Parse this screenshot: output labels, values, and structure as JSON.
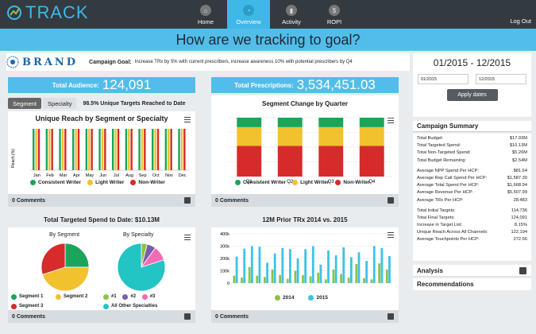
{
  "app": {
    "logo_text": "TRACK",
    "logout": "Log Out"
  },
  "nav": [
    {
      "label": "Home",
      "icon": "home-icon",
      "active": false
    },
    {
      "label": "Overview",
      "icon": "speedometer-icon",
      "active": true
    },
    {
      "label": "Activity",
      "icon": "bars-icon",
      "active": false
    },
    {
      "label": "ROPI",
      "icon": "dollar-icon",
      "active": false
    }
  ],
  "banner": "How are we tracking to goal?",
  "goal": {
    "brand": "BRAND",
    "label": "Campaign Goal:",
    "text": "Increase TRx by 5% with current prescribers, increase awareness 10% with potential prescribers by Q4"
  },
  "stats": {
    "audience_label": "Total Audience:",
    "audience_value": "124,091",
    "rx_label": "Total Prescriptions:",
    "rx_value": "3,534,451.03"
  },
  "tabs": {
    "segment": "Segment",
    "specialty": "Specialty",
    "note": "98.5% Unique Targets Reached to Date"
  },
  "colors": {
    "green": "#1aa55a",
    "yellow": "#f2c12e",
    "red": "#d52b2b",
    "blue": "#3cc3e8",
    "lime": "#8bc34a",
    "teal": "#22c4c4",
    "purple": "#7b5ea7",
    "pink": "#f26bb6"
  },
  "reach_chart": {
    "title": "Unique Reach by Segment or Specialty",
    "ylabel": "Reach (%)",
    "chart_data": {
      "type": "bar",
      "categories": [
        "Jan",
        "Feb",
        "Mar",
        "Apr",
        "May",
        "Jun",
        "Jul",
        "Aug",
        "Sep",
        "Oct",
        "Nov",
        "Dec"
      ],
      "series": [
        {
          "name": "Consistent Writer",
          "values": [
            100,
            100,
            100,
            100,
            100,
            100,
            100,
            100,
            100,
            100,
            100,
            100
          ]
        },
        {
          "name": "Light Writer",
          "values": [
            100,
            100,
            100,
            100,
            100,
            100,
            100,
            100,
            100,
            100,
            100,
            100
          ]
        },
        {
          "name": "Non-Writer",
          "values": [
            100,
            100,
            100,
            100,
            100,
            100,
            100,
            100,
            100,
            100,
            100,
            100
          ]
        }
      ],
      "ylim": [
        0,
        100
      ]
    },
    "legend": [
      "Consistent Writer",
      "Light Writer",
      "Non-Writer"
    ],
    "footer": "0 Comments"
  },
  "quarter_chart": {
    "title": "Segment Change by Quarter",
    "chart_data": {
      "type": "bar",
      "categories": [
        "Q1",
        "Q2",
        "Q3",
        "Q4"
      ],
      "series": [
        {
          "name": "Non-Writer",
          "values": [
            52,
            52,
            52,
            52
          ]
        },
        {
          "name": "Light Writer",
          "values": [
            32,
            32,
            32,
            32
          ]
        },
        {
          "name": "Consistent Writer",
          "values": [
            16,
            16,
            16,
            16
          ]
        }
      ],
      "ylim": [
        0,
        100
      ]
    },
    "legend": [
      "Consistent Writer",
      "Light Writer",
      "Non-Writer"
    ],
    "footer": "0 Comments"
  },
  "spend_chart": {
    "title": "Total Targeted Spend to Date: $10.13M",
    "by_segment": "By Segment",
    "by_specialty": "By Specialty",
    "chart_data": [
      {
        "type": "pie",
        "title": "By Segment",
        "labels": [
          "Segment 1",
          "Segment 2",
          "Segment 3"
        ],
        "values": [
          25,
          45,
          30
        ]
      },
      {
        "type": "pie",
        "title": "By Specialty",
        "labels": [
          "#1",
          "#2",
          "#3",
          "All Other Specialties"
        ],
        "values": [
          4,
          6,
          10,
          80
        ]
      }
    ],
    "legend_segment": [
      "Segment 1",
      "Segment 2",
      "Segment 3"
    ],
    "legend_specialty": [
      "#1",
      "#2",
      "#3",
      "All Other Specialties"
    ],
    "footer": "0 Comments"
  },
  "trx_chart": {
    "title": "12M Prior TRx 2014 vs. 2015",
    "chart_data": {
      "type": "bar",
      "yticks": [
        "0",
        "100k",
        "200k",
        "300k",
        "400k"
      ],
      "ylim": [
        0,
        400000
      ],
      "series": [
        {
          "name": "2014",
          "values": [
            60000,
            45000,
            130000,
            60000,
            50000,
            110000,
            65000,
            35000,
            100000,
            65000,
            55000,
            85000,
            30000,
            110000,
            75000,
            45000,
            155000,
            40000,
            30000,
            160000,
            110000
          ]
        },
        {
          "name": "2015",
          "values": [
            215000,
            280000,
            300000,
            295000,
            165000,
            240000,
            285000,
            275000,
            200000,
            275000,
            300000,
            150000,
            265000,
            225000,
            290000,
            210000,
            250000,
            180000,
            300000,
            285000,
            220000
          ]
        }
      ]
    },
    "legend": [
      "2014",
      "2015"
    ],
    "footer": "0 Comments"
  },
  "date_panel": {
    "range": "01/2015 - 12/2015",
    "from": "01/2015",
    "to": "12/2015",
    "apply": "Apply dates"
  },
  "summary": {
    "title": "Campaign Summary",
    "groups": [
      [
        {
          "label": "Total Budget:",
          "value": "$17.93M"
        },
        {
          "label": "Total Targeted Spend:",
          "value": "$10.13M"
        },
        {
          "label": "Total Non-Targeted Spend:",
          "value": "$5.26M"
        },
        {
          "label": "Total Budget Remaining:",
          "value": "$2.54M"
        }
      ],
      [
        {
          "label": "Average NPP Spend Per HCP:",
          "value": "$81.64"
        },
        {
          "label": "Average Rep Call Spend Per HCP:",
          "value": "$1,587.30"
        },
        {
          "label": "Average Total Spend Per HCP:",
          "value": "$1,668.94"
        },
        {
          "label": "Average Revenue Per HCP:",
          "value": "$5,507.99"
        },
        {
          "label": "Average TRx Per HCP:",
          "value": "28.483"
        }
      ],
      [
        {
          "label": "Total Initial Targets:",
          "value": "114,736"
        },
        {
          "label": "Total Final Targets:",
          "value": "124,091"
        },
        {
          "label": "Increase in Target List:",
          "value": "8.15%"
        },
        {
          "label": "Unique Reach Across All Channels:",
          "value": "122,194"
        },
        {
          "label": "Average Touchpoints Per HCP:",
          "value": "272.56"
        }
      ]
    ]
  },
  "analysis": "Analysis",
  "recommendations": "Recommendations"
}
